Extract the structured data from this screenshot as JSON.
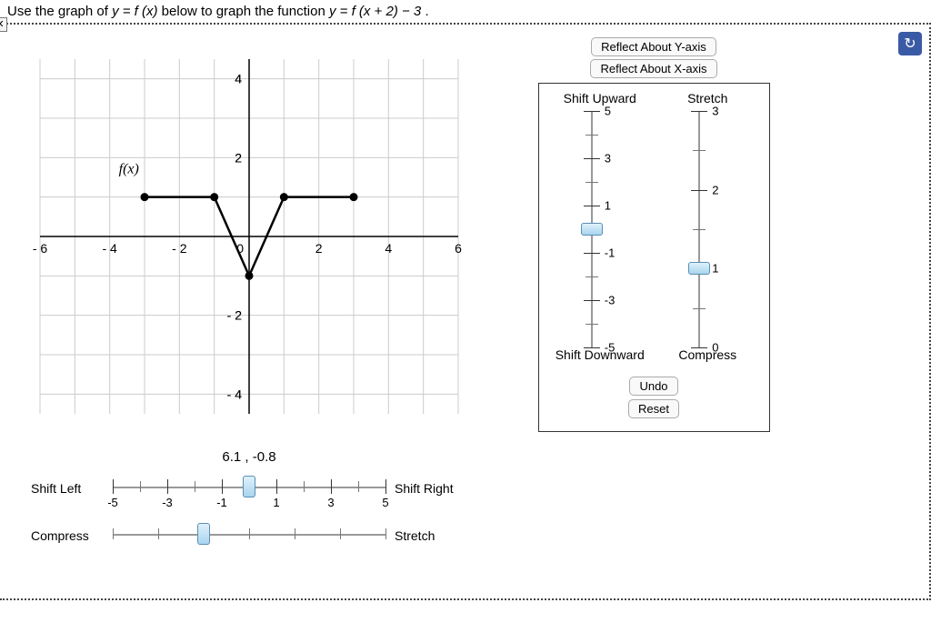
{
  "question": {
    "prefix": "Use the graph of ",
    "eq1": "y = f (x)",
    "mid": " below to graph the function ",
    "eq2": "y = f (x + 2) − 3",
    "suffix": "."
  },
  "graph": {
    "function_label": "f(x)",
    "xlim": [
      -6,
      6
    ],
    "ylim": [
      -4.5,
      4.5
    ],
    "xtick_step": 2,
    "ytick_step": 2,
    "grid_color": "#cccccc",
    "axis_color": "#000000",
    "points": [
      {
        "x": -3,
        "y": 1
      },
      {
        "x": -1,
        "y": 1
      },
      {
        "x": 0,
        "y": -1
      },
      {
        "x": 1,
        "y": 1
      },
      {
        "x": 3,
        "y": 1
      }
    ],
    "dot_radius": 4.5,
    "line_width": 2.5,
    "coord_readout": "6.1 , -0.8"
  },
  "controls": {
    "reflect_y": "Reflect About Y-axis",
    "reflect_x": "Reflect About X-axis",
    "shift_up": "Shift Upward",
    "shift_down": "Shift Downward",
    "stretch": "Stretch",
    "compress": "Compress",
    "shift_left": "Shift Left",
    "shift_right": "Shift Right",
    "undo": "Undo",
    "reset": "Reset"
  },
  "v_sliders": {
    "shift": {
      "min": -5,
      "max": 5,
      "major": [
        5,
        3,
        1,
        -1,
        -3,
        -5
      ],
      "value": 0
    },
    "stretch": {
      "min": 0,
      "max": 3,
      "major": [
        3,
        2,
        1,
        0
      ],
      "value": 1
    }
  },
  "h_sliders": {
    "shift": {
      "min": -5,
      "max": 5,
      "labels": [
        -5,
        -3,
        -1,
        1,
        3,
        5
      ],
      "value": 0
    },
    "stretch": {
      "min": 0,
      "max": 3,
      "value": 1
    }
  },
  "colors": {
    "panel_border": "#333333",
    "slider_handle": "#a8d5ef",
    "reload_bg": "#3b5aa6"
  }
}
